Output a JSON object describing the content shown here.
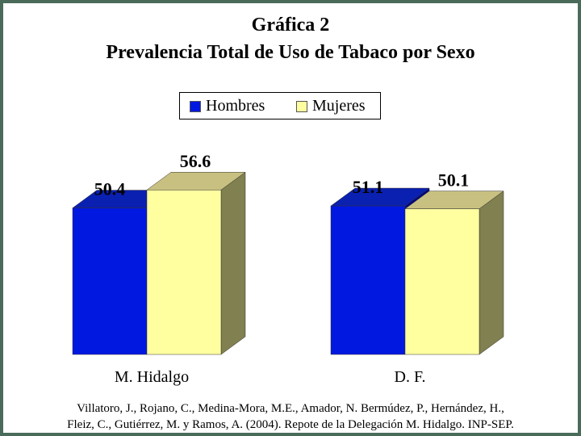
{
  "title_line1": "Gráfica 2",
  "title_line2": "Prevalencia Total de Uso de Tabaco por Sexo",
  "chart_data": {
    "type": "bar",
    "title": "Gráfica 2 Prevalencia Total de Uso de Tabaco por Sexo",
    "categories": [
      "M. Hidalgo",
      "D. F."
    ],
    "series": [
      {
        "name": "Hombres",
        "values": [
          50.4,
          51.1
        ],
        "front_color": "#0018e0",
        "top_color": "#0a20b0",
        "side_color": "#000880"
      },
      {
        "name": "Mujeres",
        "values": [
          56.6,
          50.1
        ],
        "front_color": "#ffffa0",
        "top_color": "#c8c080",
        "side_color": "#808050"
      }
    ],
    "value_labels": [
      "50.4",
      "56.6",
      "51.1",
      "50.1"
    ],
    "legend_position": "top-center",
    "ylim": [
      0,
      60
    ],
    "grid": false
  },
  "citation": [
    "Villatoro, J., Rojano, C., Medina-Mora, M.E., Amador, N. Bermúdez, P., Hernández, H.,",
    "Fleiz, C., Gutiérrez, M. y Ramos, A. (2004). Repote de la Delegación M. Hidalgo. INP-SEP."
  ],
  "colors": {
    "frame": "#4a6b5a",
    "background": "#ffffff"
  }
}
